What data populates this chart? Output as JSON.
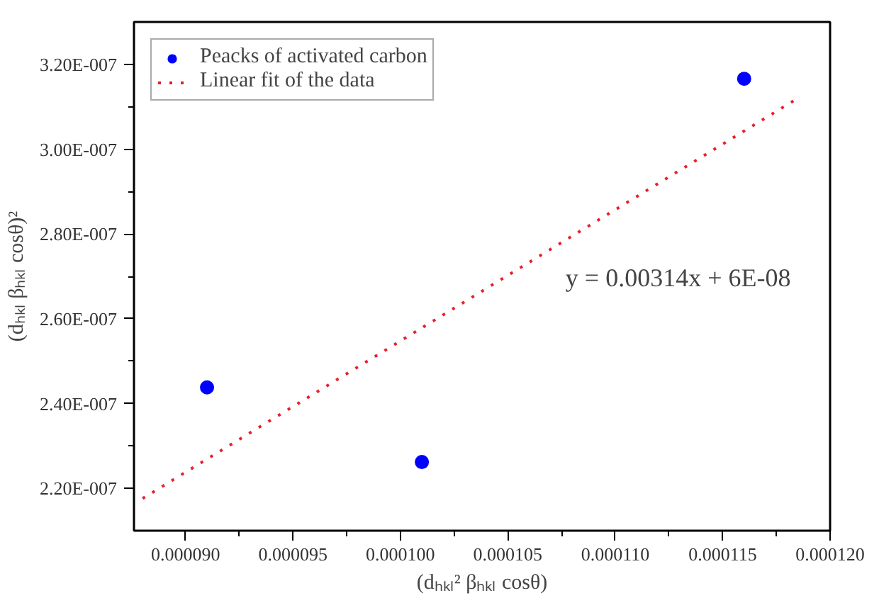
{
  "chart_data": {
    "type": "scatter",
    "xlabel": "(dₕₖₗ² βₕₖₗ cosθ)",
    "ylabel": "(dₕₖₗ βₕₖₗ cosθ)²",
    "annotations": [
      "y = 0.00314x + 6E-08"
    ],
    "x": [
      9.1e-05,
      0.000101,
      0.000116
    ],
    "series": [
      {
        "name": "Peacks of activated carbon",
        "color": "#0000ff",
        "values": [
          2.438e-07,
          2.262e-07,
          3.166e-07
        ],
        "marker": "circle"
      },
      {
        "name": "Linear fit of the data",
        "type": "line",
        "color": "#e8202a",
        "line_style": "dotted",
        "x": [
          8.8e-05,
          0.0001183
        ],
        "values": [
          2.176e-07,
          3.114e-07
        ]
      }
    ],
    "xlim": [
      8.76e-05,
      0.00012
    ],
    "ylim": [
      2.1e-07,
      3.3e-07
    ],
    "xticks": [
      {
        "value": 9e-05,
        "label": "0.000090"
      },
      {
        "value": 9.5e-05,
        "label": "0.000095"
      },
      {
        "value": 0.0001,
        "label": "0.000100"
      },
      {
        "value": 0.000105,
        "label": "0.000105"
      },
      {
        "value": 0.00011,
        "label": "0.000110"
      },
      {
        "value": 0.000115,
        "label": "0.000115"
      },
      {
        "value": 0.00012,
        "label": "0.000120"
      }
    ],
    "yticks": [
      {
        "value": 2.2e-07,
        "label": "2.20E-007"
      },
      {
        "value": 2.4e-07,
        "label": "2.40E-007"
      },
      {
        "value": 2.6e-07,
        "label": "2.60E-007"
      },
      {
        "value": 2.8e-07,
        "label": "2.80E-007"
      },
      {
        "value": 3e-07,
        "label": "3.00E-007"
      },
      {
        "value": 3.2e-07,
        "label": "3.20E-007"
      }
    ],
    "grid": false,
    "legend": "top left"
  }
}
